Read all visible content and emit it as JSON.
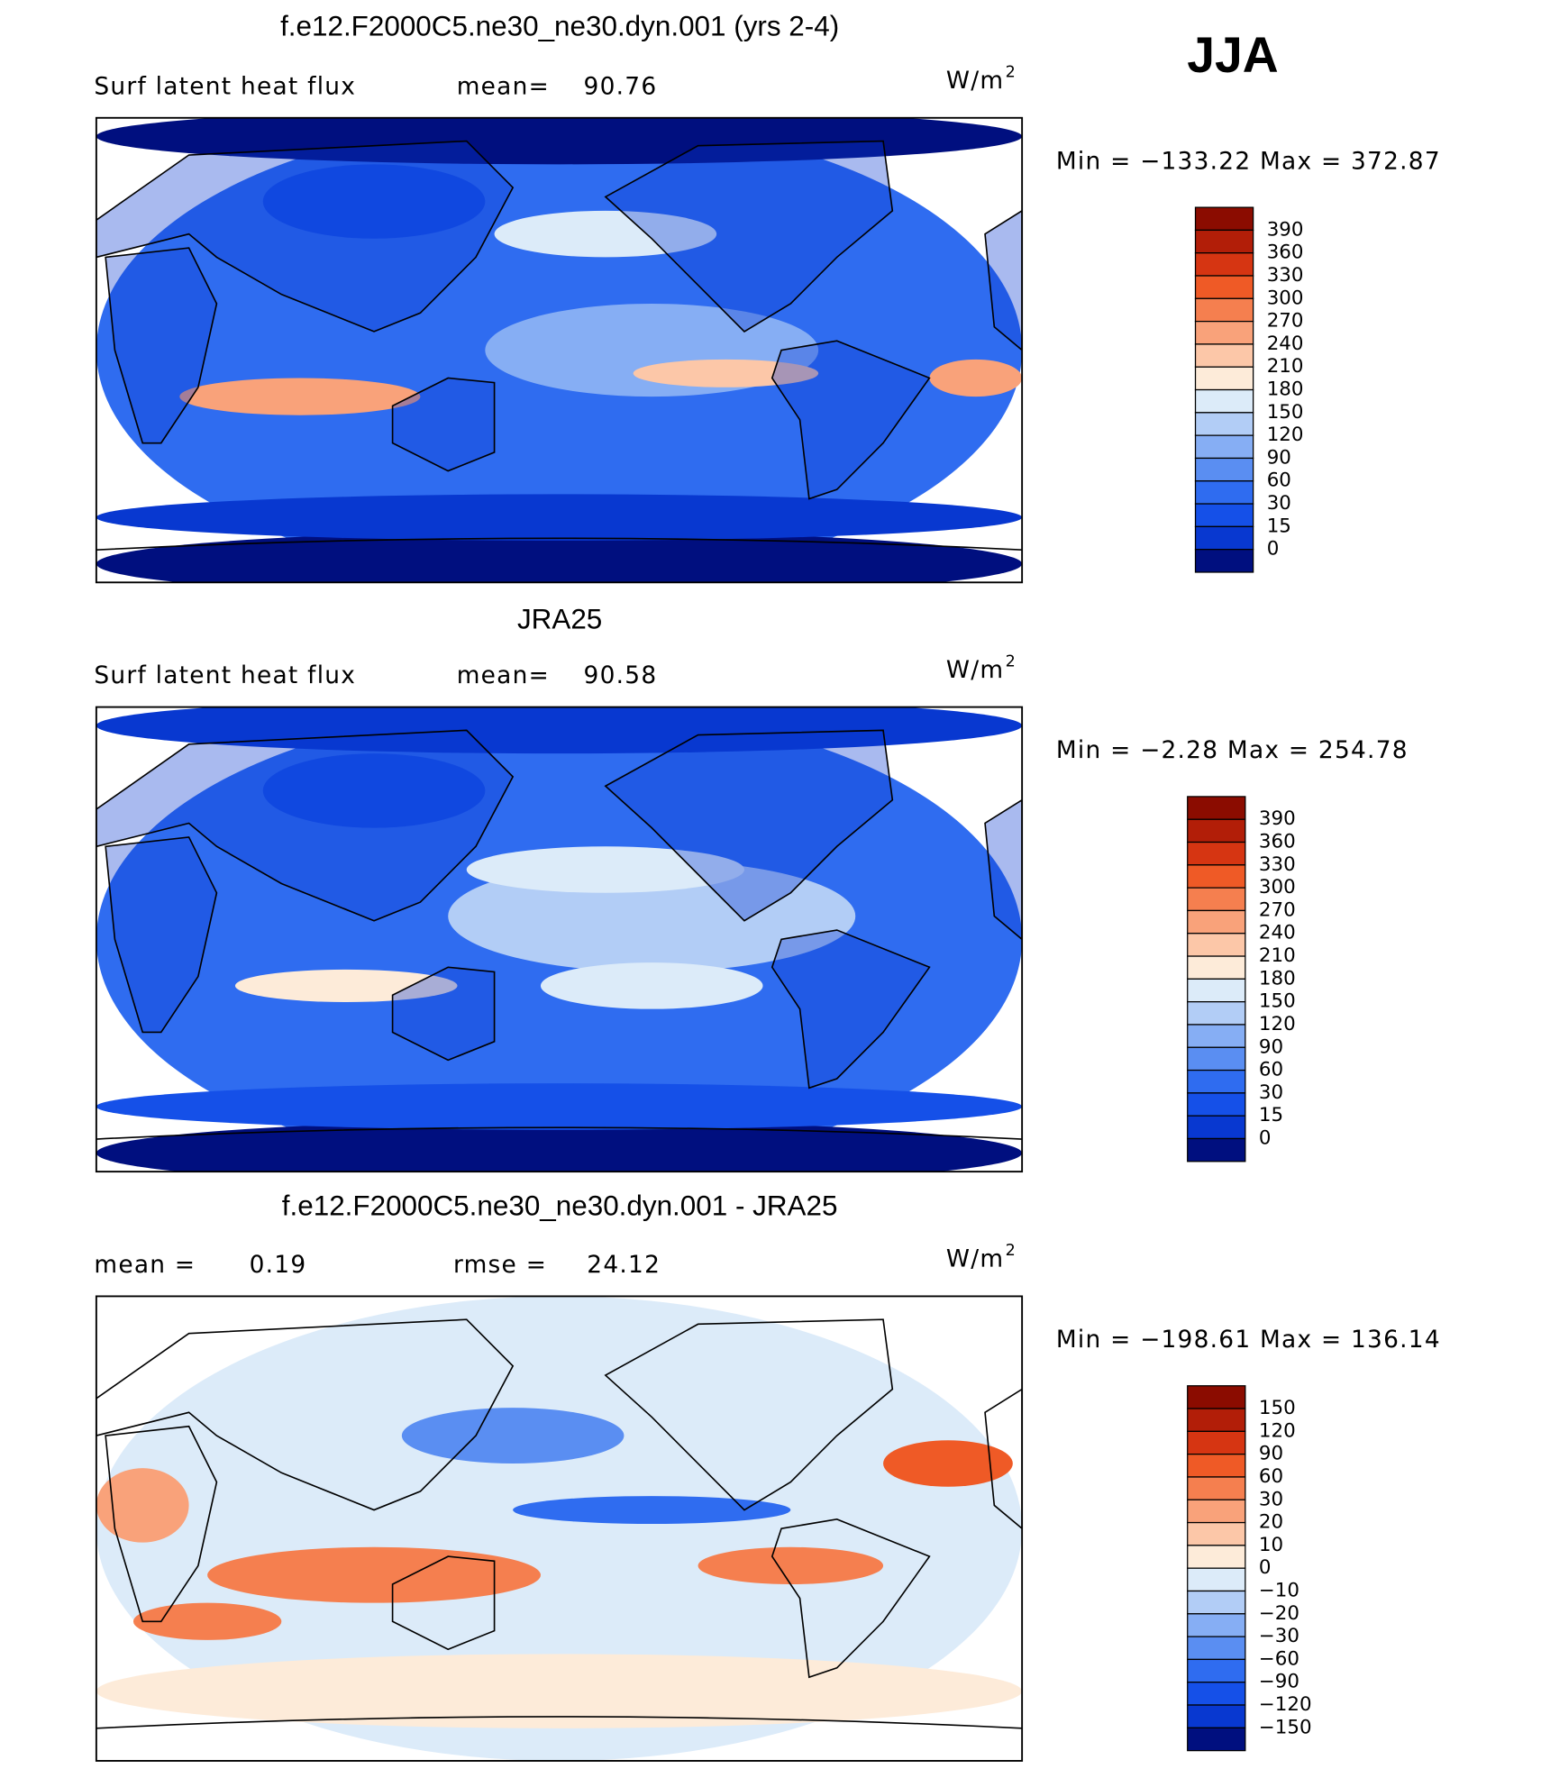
{
  "header": {
    "season": "JJA"
  },
  "panels": [
    {
      "title": "f.e12.F2000C5.ne30_ne30.dyn.001 (yrs 2-4)",
      "variable": "Surf latent heat flux",
      "stats": [
        {
          "label": "mean=",
          "value": 90.76
        }
      ],
      "units": {
        "base": "W/m",
        "exponent": "2"
      },
      "minmax": "Min = −133.22 Max = 372.87",
      "colorbar": {
        "labels": [
          "390",
          "360",
          "330",
          "300",
          "270",
          "240",
          "210",
          "180",
          "150",
          "120",
          "90",
          "60",
          "30",
          "15",
          "0"
        ],
        "colors": [
          "#8b0c00",
          "#b21e08",
          "#d63512",
          "#ef5a26",
          "#f57f4f",
          "#f9a27a",
          "#fcc7a8",
          "#fdebd9",
          "#dcebf9",
          "#b2cdf6",
          "#86aef4",
          "#5a8ef2",
          "#2f6cf0",
          "#1550e8",
          "#0838d0",
          "#000f7f"
        ]
      }
    },
    {
      "title": "JRA25",
      "variable": "Surf latent heat flux",
      "stats": [
        {
          "label": "mean=",
          "value": 90.58
        }
      ],
      "units": {
        "base": "W/m",
        "exponent": "2"
      },
      "minmax": "Min = −2.28 Max = 254.78",
      "colorbar": {
        "labels": [
          "390",
          "360",
          "330",
          "300",
          "270",
          "240",
          "210",
          "180",
          "150",
          "120",
          "90",
          "60",
          "30",
          "15",
          "0"
        ],
        "colors": [
          "#8b0c00",
          "#b21e08",
          "#d63512",
          "#ef5a26",
          "#f57f4f",
          "#f9a27a",
          "#fcc7a8",
          "#fdebd9",
          "#dcebf9",
          "#b2cdf6",
          "#86aef4",
          "#5a8ef2",
          "#2f6cf0",
          "#1550e8",
          "#0838d0",
          "#000f7f"
        ]
      }
    },
    {
      "title": "f.e12.F2000C5.ne30_ne30.dyn.001 - JRA25",
      "stats": [
        {
          "label": "mean =",
          "value": 0.19
        },
        {
          "label": "rmse =",
          "value": 24.12
        }
      ],
      "units": {
        "base": "W/m",
        "exponent": "2"
      },
      "minmax": "Min = −198.61 Max = 136.14",
      "colorbar": {
        "labels": [
          "150",
          "120",
          "90",
          "60",
          "30",
          "20",
          "10",
          "0",
          "−10",
          "−20",
          "−30",
          "−60",
          "−90",
          "−120",
          "−150"
        ],
        "colors": [
          "#8b0c00",
          "#b21e08",
          "#d63512",
          "#ef5a26",
          "#f57f4f",
          "#f9a27a",
          "#fcc7a8",
          "#fdebd9",
          "#dcebf9",
          "#b2cdf6",
          "#86aef4",
          "#5a8ef2",
          "#2f6cf0",
          "#1550e8",
          "#0838d0",
          "#000f7f"
        ]
      }
    }
  ]
}
